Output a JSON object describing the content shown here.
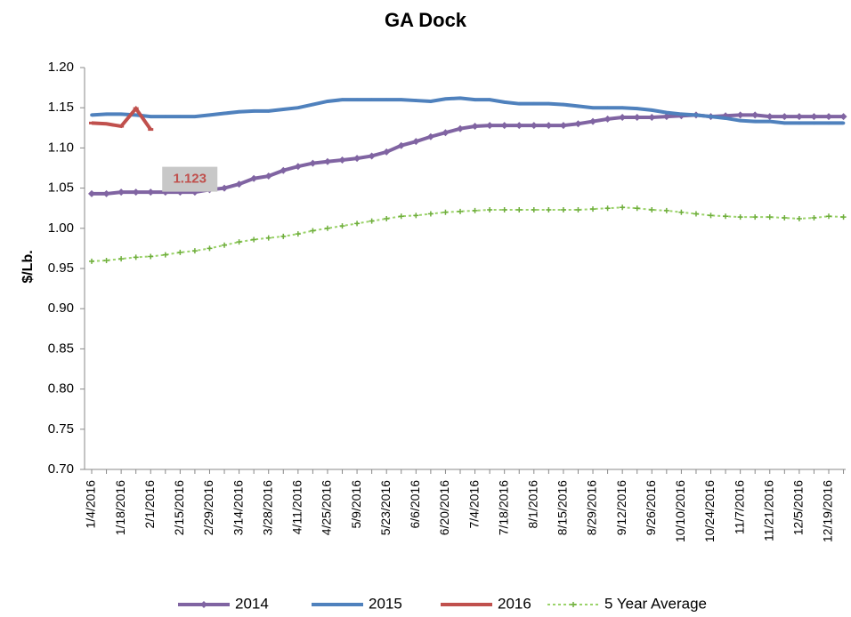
{
  "chart_data": {
    "type": "line",
    "title": "GA Dock",
    "y_label": "$/Lb.",
    "categories": [
      "1/4/2016",
      null,
      "1/18/2016",
      null,
      "2/1/2016",
      null,
      "2/15/2016",
      null,
      "2/29/2016",
      null,
      "3/14/2016",
      null,
      "3/28/2016",
      null,
      "4/11/2016",
      null,
      "4/25/2016",
      null,
      "5/9/2016",
      null,
      "5/23/2016",
      null,
      "6/6/2016",
      null,
      "6/20/2016",
      null,
      "7/4/2016",
      null,
      "7/18/2016",
      null,
      "8/1/2016",
      null,
      "8/15/2016",
      null,
      "8/29/2016",
      null,
      "9/12/2016",
      null,
      "9/26/2016",
      null,
      "10/10/2016",
      null,
      "10/24/2016",
      null,
      "11/7/2016",
      null,
      "11/21/2016",
      null,
      "12/5/2016",
      null,
      "12/19/2016",
      null
    ],
    "series": [
      {
        "name": "2014",
        "color": "#8064a2",
        "style": "solid",
        "marker": "diamond",
        "values": [
          1.043,
          1.043,
          1.045,
          1.045,
          1.045,
          1.045,
          1.045,
          1.045,
          1.048,
          1.05,
          1.055,
          1.062,
          1.065,
          1.072,
          1.077,
          1.081,
          1.083,
          1.085,
          1.087,
          1.09,
          1.095,
          1.103,
          1.108,
          1.114,
          1.119,
          1.124,
          1.127,
          1.128,
          1.128,
          1.128,
          1.128,
          1.128,
          1.128,
          1.13,
          1.133,
          1.136,
          1.138,
          1.138,
          1.138,
          1.139,
          1.14,
          1.141,
          1.139,
          1.14,
          1.141,
          1.141,
          1.139,
          1.139,
          1.139,
          1.139,
          1.139,
          1.139
        ]
      },
      {
        "name": "2015",
        "color": "#4f81bd",
        "style": "solid",
        "marker": "dot",
        "values": [
          1.141,
          1.142,
          1.142,
          1.141,
          1.139,
          1.139,
          1.139,
          1.139,
          1.141,
          1.143,
          1.145,
          1.146,
          1.146,
          1.148,
          1.15,
          1.154,
          1.158,
          1.16,
          1.16,
          1.16,
          1.16,
          1.16,
          1.159,
          1.158,
          1.161,
          1.162,
          1.16,
          1.16,
          1.157,
          1.155,
          1.155,
          1.155,
          1.154,
          1.152,
          1.15,
          1.15,
          1.15,
          1.149,
          1.147,
          1.144,
          1.142,
          1.141,
          1.139,
          1.137,
          1.134,
          1.133,
          1.133,
          1.131,
          1.131,
          1.131,
          1.131,
          1.131
        ]
      },
      {
        "name": "2016",
        "color": "#c0504d",
        "style": "solid",
        "marker": "dash",
        "values": [
          1.131,
          1.13,
          1.127,
          1.149,
          1.123,
          null,
          null,
          null,
          null,
          null,
          null,
          null,
          null,
          null,
          null,
          null,
          null,
          null,
          null,
          null,
          null,
          null,
          null,
          null,
          null,
          null,
          null,
          null,
          null,
          null,
          null,
          null,
          null,
          null,
          null,
          null,
          null,
          null,
          null,
          null,
          null,
          null,
          null,
          null,
          null,
          null,
          null,
          null,
          null,
          null,
          null,
          null
        ],
        "value_labels": [
          null,
          null,
          null,
          null,
          "1.123",
          null,
          null,
          null,
          null,
          null,
          null,
          null,
          null,
          null,
          null,
          null,
          null,
          null,
          null,
          null,
          null,
          null,
          null,
          null,
          null,
          null,
          null,
          null,
          null,
          null,
          null,
          null,
          null,
          null,
          null,
          null,
          null,
          null,
          null,
          null,
          null,
          null,
          null,
          null,
          null,
          null,
          null,
          null,
          null,
          null,
          null,
          null
        ]
      },
      {
        "name": "5 Year Average",
        "color": "#9bd36a",
        "style": "dotted",
        "marker": "plus",
        "values": [
          0.959,
          0.96,
          0.962,
          0.964,
          0.965,
          0.967,
          0.97,
          0.972,
          0.975,
          0.979,
          0.983,
          0.986,
          0.988,
          0.99,
          0.993,
          0.997,
          1.0,
          1.003,
          1.006,
          1.009,
          1.012,
          1.015,
          1.016,
          1.018,
          1.02,
          1.021,
          1.022,
          1.023,
          1.023,
          1.023,
          1.023,
          1.023,
          1.023,
          1.023,
          1.024,
          1.025,
          1.026,
          1.025,
          1.023,
          1.022,
          1.02,
          1.018,
          1.016,
          1.015,
          1.014,
          1.014,
          1.014,
          1.013,
          1.012,
          1.013,
          1.015,
          1.014
        ]
      }
    ],
    "ylim": [
      0.7,
      1.2
    ],
    "yticks": [
      {
        "value": 0.7,
        "label": "0.70"
      },
      {
        "value": 0.75,
        "label": "0.75"
      },
      {
        "value": 0.8,
        "label": "0.80"
      },
      {
        "value": 0.85,
        "label": "0.85"
      },
      {
        "value": 0.9,
        "label": "0.90"
      },
      {
        "value": 0.95,
        "label": "0.95"
      },
      {
        "value": 1.0,
        "label": "1.00"
      },
      {
        "value": 1.05,
        "label": "1.05"
      },
      {
        "value": 1.1,
        "label": "1.10"
      },
      {
        "value": 1.15,
        "label": "1.15"
      },
      {
        "value": 1.2,
        "label": "1.20"
      }
    ],
    "grid": false,
    "legend": "bottom"
  }
}
